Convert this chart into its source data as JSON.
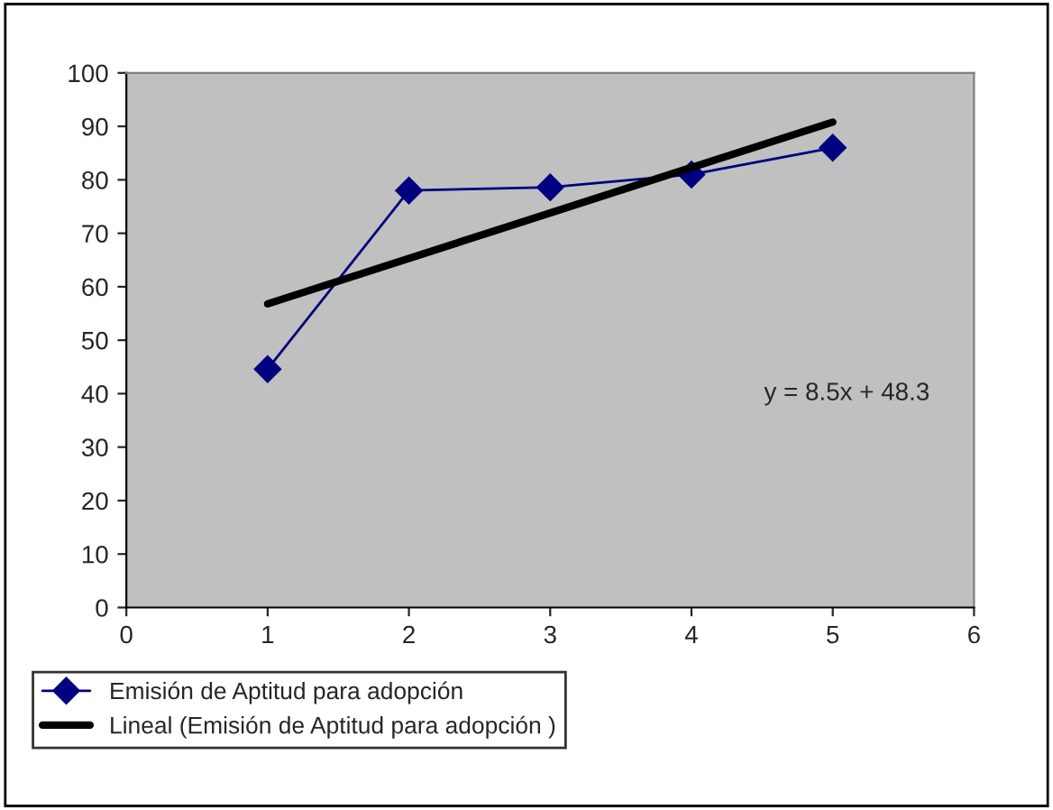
{
  "chart_data": {
    "type": "line",
    "x": [
      1,
      2,
      3,
      4,
      5
    ],
    "series": [
      {
        "name": "Emisión de Aptitud para adopción",
        "color": "#000080",
        "values": [
          44.6,
          78,
          78.6,
          81,
          86
        ],
        "marker": "diamond"
      },
      {
        "name": "Lineal (Emisión de Aptitud para adopción )",
        "color": "#000000",
        "type": "line",
        "x": [
          1,
          5
        ],
        "values": [
          56.8,
          90.8
        ],
        "marker": "none"
      }
    ],
    "xlim": [
      0,
      6
    ],
    "xticks": [
      0,
      1,
      2,
      3,
      4,
      5,
      6
    ],
    "ylim": [
      0,
      100
    ],
    "yticks": [
      0,
      10,
      20,
      30,
      40,
      50,
      60,
      70,
      80,
      90,
      100
    ],
    "annotations": [
      "y = 8.5x + 48.3"
    ],
    "grid": false,
    "legend": "bottom"
  }
}
